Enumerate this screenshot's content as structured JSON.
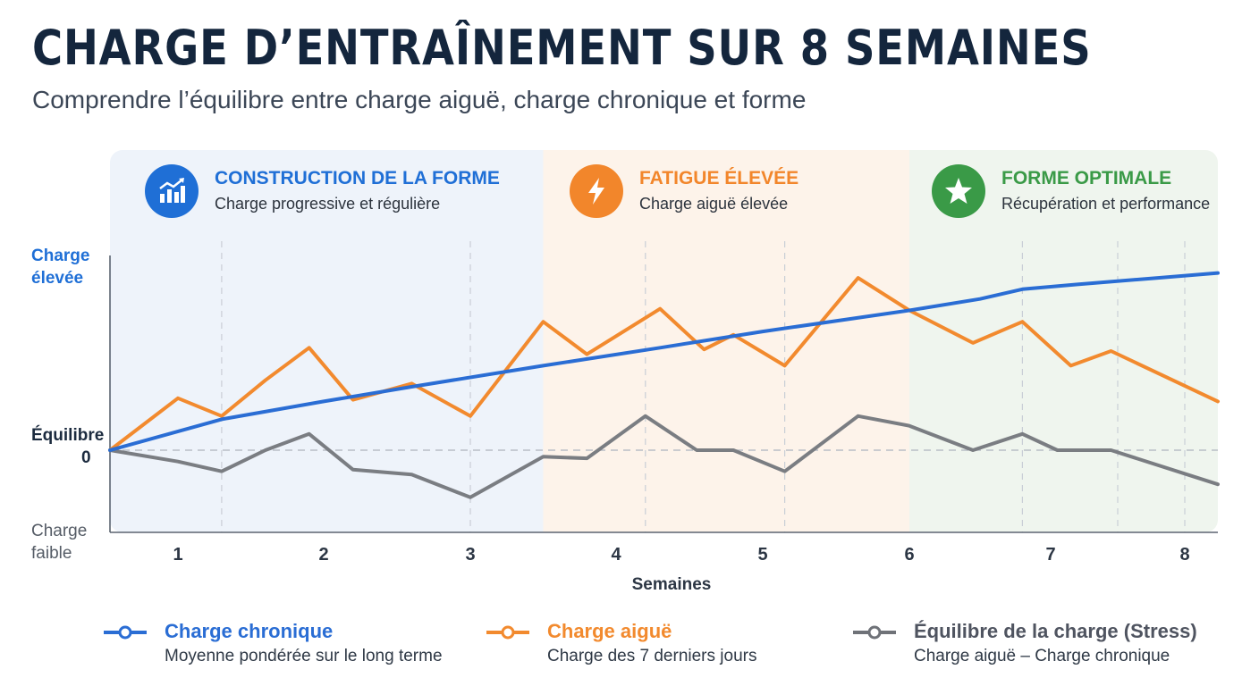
{
  "header": {
    "title": "CHARGE D’ENTRAÎNEMENT SUR 8 SEMAINES",
    "subtitle": "Comprendre l’équilibre entre charge aiguë, charge chronique et forme"
  },
  "zones": [
    {
      "title": "CONSTRUCTION DE LA FORME",
      "subtitle": "Charge progressive et régulière",
      "icon": "bar-chart-up-icon",
      "color": "#1f6fd6",
      "bg": "#eef3fa",
      "range": [
        0.55,
        3.5
      ]
    },
    {
      "title": "FATIGUE ÉLEVÉE",
      "subtitle": "Charge aiguë élevée",
      "icon": "lightning-icon",
      "color": "#f2862b",
      "bg": "#fdf3ea",
      "range": [
        3.5,
        6
      ]
    },
    {
      "title": "FORME OPTIMALE",
      "subtitle": "Récupération et performance",
      "icon": "star-icon",
      "color": "#3a9a47",
      "bg": "#eff5ee",
      "range": [
        6,
        8.22
      ]
    }
  ],
  "y_labels": {
    "high": [
      "Charge",
      "élevée"
    ],
    "balance": [
      "Équilibre",
      "0"
    ],
    "low": [
      "Charge",
      "faible"
    ]
  },
  "chart_data": {
    "type": "line",
    "xlabel": "Semaines",
    "ylabel": "",
    "x_ticks": [
      1,
      2,
      3,
      4,
      5,
      6,
      7,
      8
    ],
    "xlim": [
      0.55,
      8.22
    ],
    "ylim": [
      -5,
      12
    ],
    "baseline": 0,
    "grid": "vertical dashed",
    "series": [
      {
        "name": "Charge chronique",
        "color": "#2a6dd4",
        "x": [
          0.55,
          1.3,
          2,
          2.6,
          3.5,
          4.3,
          5,
          6,
          6.5,
          6.8,
          7.2,
          7.8,
          8.22
        ],
        "values": [
          0,
          1.9,
          3.0,
          3.9,
          5.2,
          6.3,
          7.3,
          8.6,
          9.3,
          9.9,
          10.2,
          10.6,
          10.9
        ]
      },
      {
        "name": "Charge aiguë",
        "color": "#f28a2e",
        "x": [
          0.55,
          1,
          1.3,
          1.6,
          1.9,
          2.2,
          2.6,
          3,
          3.5,
          3.8,
          4.3,
          4.6,
          4.8,
          5.15,
          5.65,
          6,
          6.45,
          6.8,
          7.15,
          7.45,
          8.22
        ],
        "values": [
          0,
          3.2,
          2.1,
          4.3,
          6.3,
          3.1,
          4.1,
          2.1,
          7.9,
          5.9,
          8.7,
          6.2,
          7.1,
          5.2,
          10.6,
          8.6,
          6.6,
          7.9,
          5.2,
          6.1,
          3.0
        ]
      },
      {
        "name": "Équilibre de la charge (Stress)",
        "color": "#7a7d82",
        "x": [
          0.55,
          1,
          1.3,
          1.6,
          1.9,
          2.2,
          2.6,
          3,
          3.5,
          3.8,
          4.2,
          4.55,
          4.8,
          5.15,
          5.65,
          6,
          6.45,
          6.8,
          7.05,
          7.45,
          8.22
        ],
        "values": [
          0,
          -0.7,
          -1.3,
          0,
          1.0,
          -1.2,
          -1.5,
          -2.9,
          -0.4,
          -0.5,
          2.1,
          0,
          0,
          -1.3,
          2.1,
          1.5,
          0,
          1.0,
          0,
          0,
          -2.1
        ]
      }
    ]
  },
  "legend": [
    {
      "name": "Charge chronique",
      "desc": "Moyenne pondérée sur le long terme",
      "color": "#2a6dd4"
    },
    {
      "name": "Charge aiguë",
      "desc": "Charge des 7 derniers jours",
      "color": "#f28a2e"
    },
    {
      "name": "Équilibre de la charge (Stress)",
      "desc": "Charge aiguë – Charge chronique",
      "color": "#6f7278"
    }
  ]
}
